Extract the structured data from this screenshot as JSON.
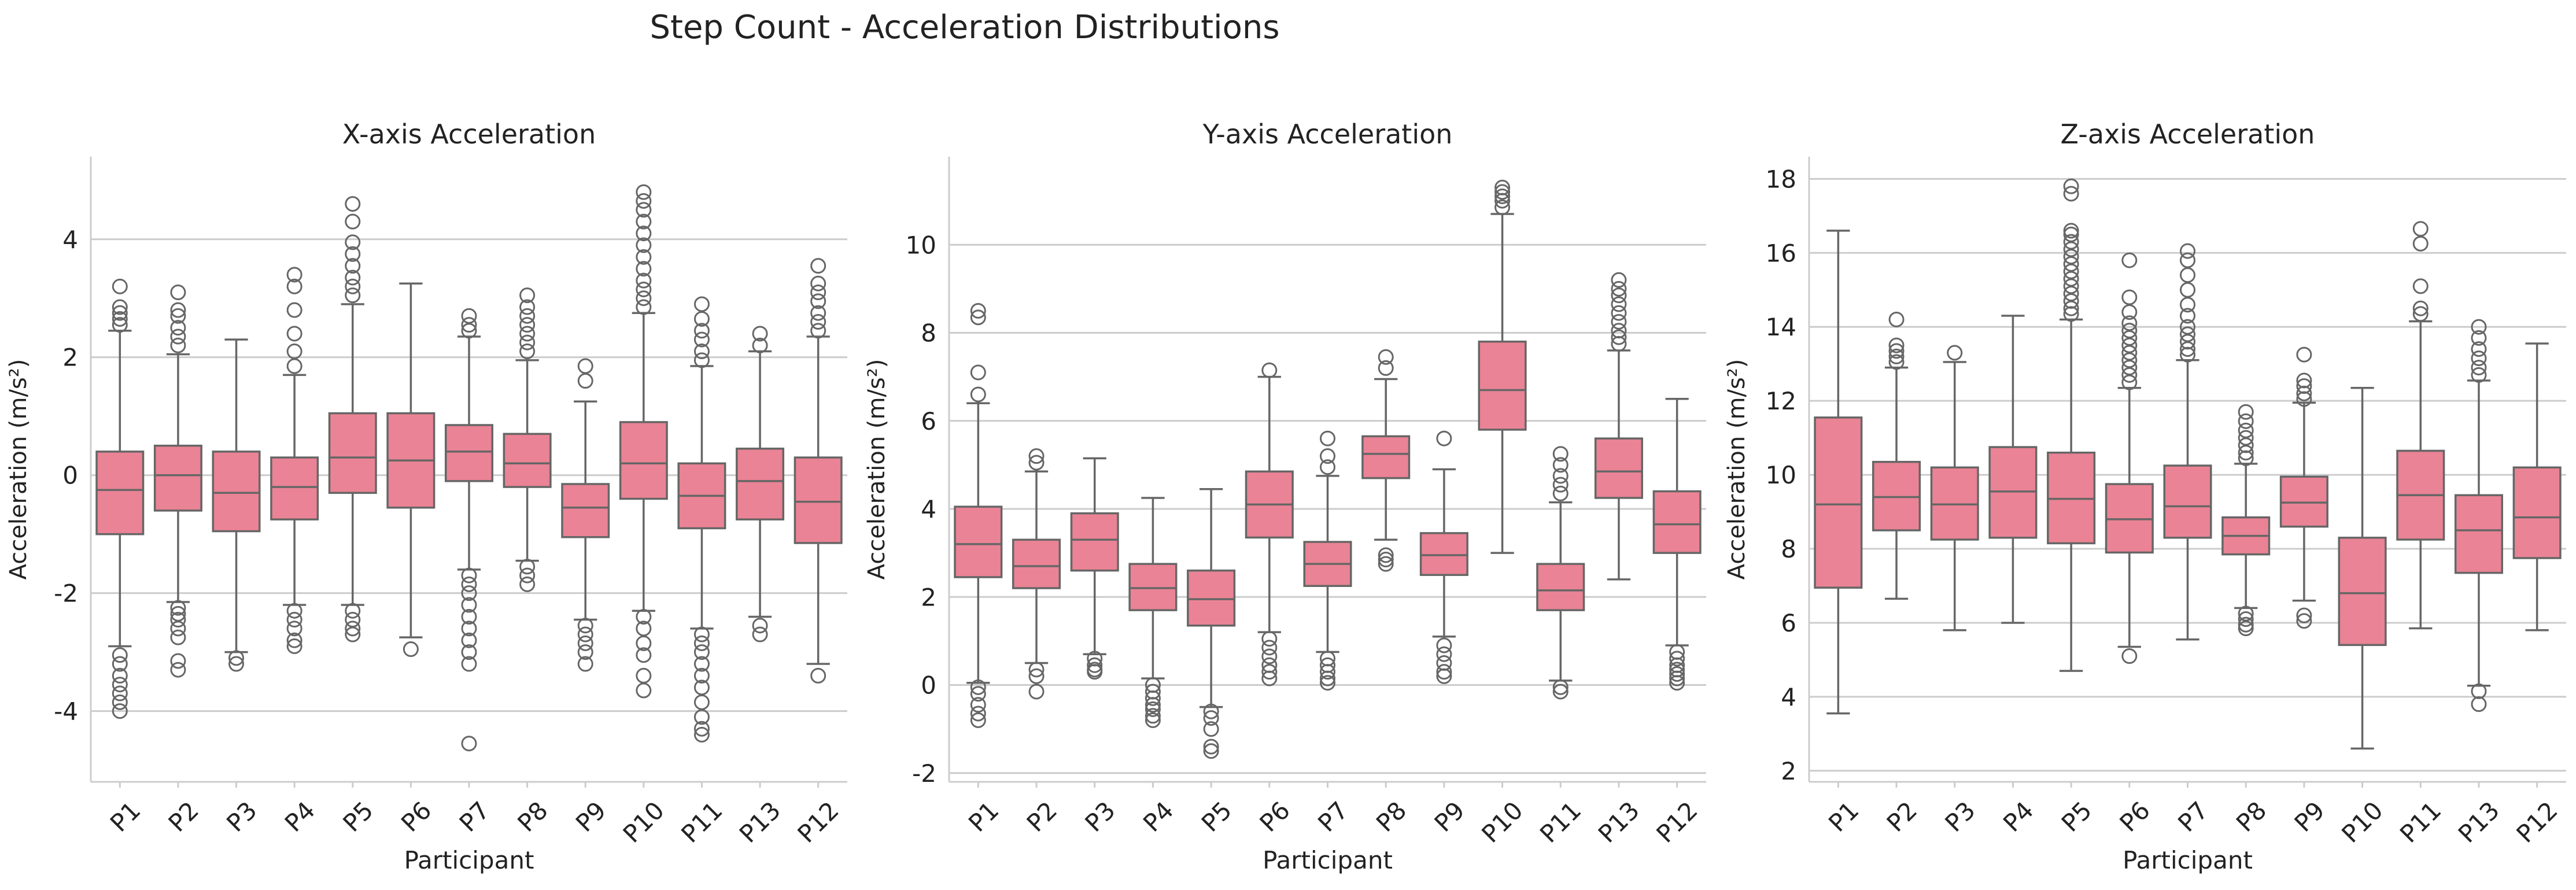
{
  "suptitle": "Step Count - Acceleration Distributions",
  "colors": {
    "box_fill": "#ea8395",
    "box_edge": "#666666",
    "grid": "#cccccc",
    "spine": "#cccccc"
  },
  "chart_data": [
    {
      "type": "box",
      "title": "X-axis Acceleration",
      "xlabel": "Participant",
      "ylabel": "Acceleration (m/s²)",
      "ylim": [
        -5.2,
        5.4
      ],
      "yticks": [
        -4,
        -2,
        0,
        2,
        4
      ],
      "grid": true,
      "categories": [
        "P1",
        "P2",
        "P3",
        "P4",
        "P5",
        "P6",
        "P7",
        "P8",
        "P9",
        "P10",
        "P11",
        "P13",
        "P12"
      ],
      "boxes": [
        {
          "whislo": -2.9,
          "q1": -1.0,
          "med": -0.25,
          "q3": 0.4,
          "whishi": 2.45,
          "fliers": [
            2.55,
            2.65,
            2.75,
            2.85,
            3.2,
            -3.05,
            -3.2,
            -3.4,
            -3.55,
            -3.7,
            -3.85,
            -4.0
          ]
        },
        {
          "whislo": -2.15,
          "q1": -0.6,
          "med": 0.0,
          "q3": 0.5,
          "whishi": 2.05,
          "fliers": [
            2.2,
            2.35,
            2.5,
            2.7,
            2.8,
            3.1,
            -2.25,
            -2.35,
            -2.45,
            -2.6,
            -2.75,
            -3.15,
            -3.3
          ]
        },
        {
          "whislo": -3.0,
          "q1": -0.95,
          "med": -0.3,
          "q3": 0.4,
          "whishi": 2.3,
          "fliers": [
            -3.1,
            -3.2
          ]
        },
        {
          "whislo": -2.2,
          "q1": -0.75,
          "med": -0.2,
          "q3": 0.3,
          "whishi": 1.7,
          "fliers": [
            1.85,
            2.1,
            2.4,
            2.8,
            3.2,
            3.4,
            -2.3,
            -2.45,
            -2.6,
            -2.8,
            -2.9
          ]
        },
        {
          "whislo": -2.2,
          "q1": -0.3,
          "med": 0.3,
          "q3": 1.05,
          "whishi": 2.9,
          "fliers": [
            3.05,
            3.2,
            3.35,
            3.55,
            3.75,
            3.95,
            4.3,
            4.6,
            -2.3,
            -2.45,
            -2.6,
            -2.7
          ]
        },
        {
          "whislo": -2.75,
          "q1": -0.55,
          "med": 0.25,
          "q3": 1.05,
          "whishi": 3.25,
          "fliers": [
            -2.95
          ]
        },
        {
          "whislo": -1.6,
          "q1": -0.1,
          "med": 0.4,
          "q3": 0.85,
          "whishi": 2.35,
          "fliers": [
            2.45,
            2.55,
            2.7,
            -1.7,
            -1.85,
            -2.0,
            -2.2,
            -2.4,
            -2.6,
            -2.8,
            -3.0,
            -3.2,
            -4.55
          ]
        },
        {
          "whislo": -1.45,
          "q1": -0.2,
          "med": 0.2,
          "q3": 0.7,
          "whishi": 1.95,
          "fliers": [
            2.1,
            2.25,
            2.4,
            2.55,
            2.7,
            2.85,
            3.05,
            -1.55,
            -1.7,
            -1.85
          ]
        },
        {
          "whislo": -2.45,
          "q1": -1.05,
          "med": -0.55,
          "q3": -0.15,
          "whishi": 1.25,
          "fliers": [
            1.6,
            1.85,
            -2.55,
            -2.7,
            -2.85,
            -3.0,
            -3.2
          ]
        },
        {
          "whislo": -2.3,
          "q1": -0.4,
          "med": 0.2,
          "q3": 0.9,
          "whishi": 2.75,
          "fliers": [
            2.85,
            3.0,
            3.15,
            3.3,
            3.5,
            3.7,
            3.9,
            4.1,
            4.3,
            4.5,
            4.65,
            4.8,
            -2.4,
            -2.6,
            -2.85,
            -3.05,
            -3.4,
            -3.65
          ]
        },
        {
          "whislo": -2.6,
          "q1": -0.9,
          "med": -0.35,
          "q3": 0.2,
          "whishi": 1.85,
          "fliers": [
            1.95,
            2.1,
            2.3,
            2.45,
            2.65,
            2.9,
            -2.7,
            -2.85,
            -3.0,
            -3.2,
            -3.4,
            -3.6,
            -3.85,
            -4.1,
            -4.3,
            -4.4
          ]
        },
        {
          "whislo": -2.4,
          "q1": -0.75,
          "med": -0.1,
          "q3": 0.45,
          "whishi": 2.1,
          "fliers": [
            2.2,
            2.4,
            -2.55,
            -2.7
          ]
        },
        {
          "whislo": -3.2,
          "q1": -1.15,
          "med": -0.45,
          "q3": 0.3,
          "whishi": 2.35,
          "fliers": [
            2.45,
            2.6,
            2.75,
            2.95,
            3.1,
            3.25,
            3.55,
            -3.4
          ]
        }
      ]
    },
    {
      "type": "box",
      "title": "Y-axis Acceleration",
      "xlabel": "Participant",
      "ylabel": "Acceleration (m/s²)",
      "ylim": [
        -2.2,
        12.0
      ],
      "yticks": [
        -2,
        0,
        2,
        4,
        6,
        8,
        10
      ],
      "grid": true,
      "categories": [
        "P1",
        "P2",
        "P3",
        "P4",
        "P5",
        "P6",
        "P7",
        "P8",
        "P9",
        "P10",
        "P11",
        "P13",
        "P12"
      ],
      "boxes": [
        {
          "whislo": 0.05,
          "q1": 2.45,
          "med": 3.2,
          "q3": 4.05,
          "whishi": 6.4,
          "fliers": [
            6.6,
            7.1,
            8.35,
            8.5,
            -0.05,
            -0.2,
            -0.45,
            -0.65,
            -0.8
          ]
        },
        {
          "whislo": 0.5,
          "q1": 2.2,
          "med": 2.7,
          "q3": 3.3,
          "whishi": 4.85,
          "fliers": [
            5.05,
            5.2,
            0.35,
            0.2,
            -0.15
          ]
        },
        {
          "whislo": 0.7,
          "q1": 2.6,
          "med": 3.3,
          "q3": 3.9,
          "whishi": 5.15,
          "fliers": [
            0.6,
            0.45,
            0.35,
            0.3
          ]
        },
        {
          "whislo": 0.15,
          "q1": 1.7,
          "med": 2.2,
          "q3": 2.75,
          "whishi": 4.25,
          "fliers": [
            0.0,
            -0.15,
            -0.3,
            -0.45,
            -0.55,
            -0.7,
            -0.8
          ]
        },
        {
          "whislo": -0.5,
          "q1": 1.35,
          "med": 1.95,
          "q3": 2.6,
          "whishi": 4.45,
          "fliers": [
            -0.6,
            -0.75,
            -1.0,
            -1.4,
            -1.5
          ]
        },
        {
          "whislo": 1.2,
          "q1": 3.35,
          "med": 4.1,
          "q3": 4.85,
          "whishi": 7.0,
          "fliers": [
            7.15,
            1.05,
            0.85,
            0.65,
            0.45,
            0.3,
            0.15
          ]
        },
        {
          "whislo": 0.75,
          "q1": 2.25,
          "med": 2.75,
          "q3": 3.25,
          "whishi": 4.75,
          "fliers": [
            4.95,
            5.2,
            5.6,
            0.6,
            0.45,
            0.3,
            0.15,
            0.05
          ]
        },
        {
          "whislo": 3.3,
          "q1": 4.7,
          "med": 5.25,
          "q3": 5.65,
          "whishi": 6.95,
          "fliers": [
            7.2,
            7.45,
            2.95,
            2.85,
            2.75
          ]
        },
        {
          "whislo": 1.1,
          "q1": 2.5,
          "med": 2.95,
          "q3": 3.45,
          "whishi": 4.9,
          "fliers": [
            5.6,
            0.9,
            0.7,
            0.5,
            0.3,
            0.2
          ]
        },
        {
          "whislo": 3.0,
          "q1": 5.8,
          "med": 6.7,
          "q3": 7.8,
          "whishi": 10.7,
          "fliers": [
            10.85,
            11.0,
            11.1,
            11.2,
            11.3
          ]
        },
        {
          "whislo": 0.1,
          "q1": 1.7,
          "med": 2.15,
          "q3": 2.75,
          "whishi": 4.15,
          "fliers": [
            4.35,
            4.55,
            4.75,
            5.0,
            5.25,
            -0.05,
            -0.15
          ]
        },
        {
          "whislo": 2.4,
          "q1": 4.25,
          "med": 4.85,
          "q3": 5.6,
          "whishi": 7.6,
          "fliers": [
            7.75,
            7.9,
            8.05,
            8.25,
            8.45,
            8.65,
            8.85,
            9.0,
            9.2
          ]
        },
        {
          "whislo": 0.9,
          "q1": 3.0,
          "med": 3.65,
          "q3": 4.4,
          "whishi": 6.5,
          "fliers": [
            0.75,
            0.6,
            0.45,
            0.35,
            0.25,
            0.15,
            0.05
          ]
        }
      ]
    },
    {
      "type": "box",
      "title": "Z-axis Acceleration",
      "xlabel": "Participant",
      "ylabel": "Acceleration (m/s²)",
      "ylim": [
        1.7,
        18.6
      ],
      "yticks": [
        2,
        4,
        6,
        8,
        10,
        12,
        14,
        16,
        18
      ],
      "grid": true,
      "categories": [
        "P1",
        "P2",
        "P3",
        "P4",
        "P5",
        "P6",
        "P7",
        "P8",
        "P9",
        "P10",
        "P11",
        "P13",
        "P12"
      ],
      "boxes": [
        {
          "whislo": 3.55,
          "q1": 6.95,
          "med": 9.2,
          "q3": 11.55,
          "whishi": 16.6,
          "fliers": []
        },
        {
          "whislo": 6.65,
          "q1": 8.5,
          "med": 9.4,
          "q3": 10.35,
          "whishi": 12.9,
          "fliers": [
            13.05,
            13.2,
            13.35,
            13.5,
            14.2
          ]
        },
        {
          "whislo": 5.8,
          "q1": 8.25,
          "med": 9.2,
          "q3": 10.2,
          "whishi": 13.05,
          "fliers": [
            13.3
          ]
        },
        {
          "whislo": 6.0,
          "q1": 8.3,
          "med": 9.55,
          "q3": 10.75,
          "whishi": 14.3,
          "fliers": []
        },
        {
          "whislo": 4.7,
          "q1": 8.15,
          "med": 9.35,
          "q3": 10.6,
          "whishi": 14.2,
          "fliers": [
            14.35,
            14.5,
            14.7,
            14.9,
            15.1,
            15.3,
            15.5,
            15.7,
            15.9,
            16.1,
            16.3,
            16.5,
            16.6,
            17.6,
            17.8
          ]
        },
        {
          "whislo": 5.35,
          "q1": 7.9,
          "med": 8.8,
          "q3": 9.75,
          "whishi": 12.35,
          "fliers": [
            12.5,
            12.7,
            12.9,
            13.1,
            13.3,
            13.5,
            13.7,
            13.9,
            14.1,
            14.4,
            14.8,
            15.8,
            5.1
          ]
        },
        {
          "whislo": 5.55,
          "q1": 8.3,
          "med": 9.15,
          "q3": 10.25,
          "whishi": 13.1,
          "fliers": [
            13.25,
            13.4,
            13.6,
            13.8,
            14.0,
            14.3,
            14.6,
            15.0,
            15.4,
            15.8,
            16.05
          ]
        },
        {
          "whislo": 6.4,
          "q1": 7.85,
          "med": 8.35,
          "q3": 8.85,
          "whishi": 10.3,
          "fliers": [
            10.45,
            10.6,
            10.8,
            11.0,
            11.2,
            11.45,
            11.7,
            6.25,
            6.1,
            5.95,
            5.85
          ]
        },
        {
          "whislo": 6.6,
          "q1": 8.6,
          "med": 9.25,
          "q3": 9.95,
          "whishi": 11.95,
          "fliers": [
            12.05,
            12.2,
            12.4,
            12.55,
            13.25,
            6.2,
            6.05
          ]
        },
        {
          "whislo": 2.6,
          "q1": 5.4,
          "med": 6.8,
          "q3": 8.3,
          "whishi": 12.35,
          "fliers": []
        },
        {
          "whislo": 5.85,
          "q1": 8.25,
          "med": 9.45,
          "q3": 10.65,
          "whishi": 14.15,
          "fliers": [
            14.35,
            14.5,
            15.1,
            16.25,
            16.65
          ]
        },
        {
          "whislo": 4.3,
          "q1": 7.35,
          "med": 8.5,
          "q3": 9.45,
          "whishi": 12.55,
          "fliers": [
            12.7,
            12.9,
            13.15,
            13.4,
            13.7,
            14.0,
            4.15,
            3.8
          ]
        },
        {
          "whislo": 5.8,
          "q1": 7.75,
          "med": 8.85,
          "q3": 10.2,
          "whishi": 13.55,
          "fliers": []
        }
      ]
    }
  ]
}
